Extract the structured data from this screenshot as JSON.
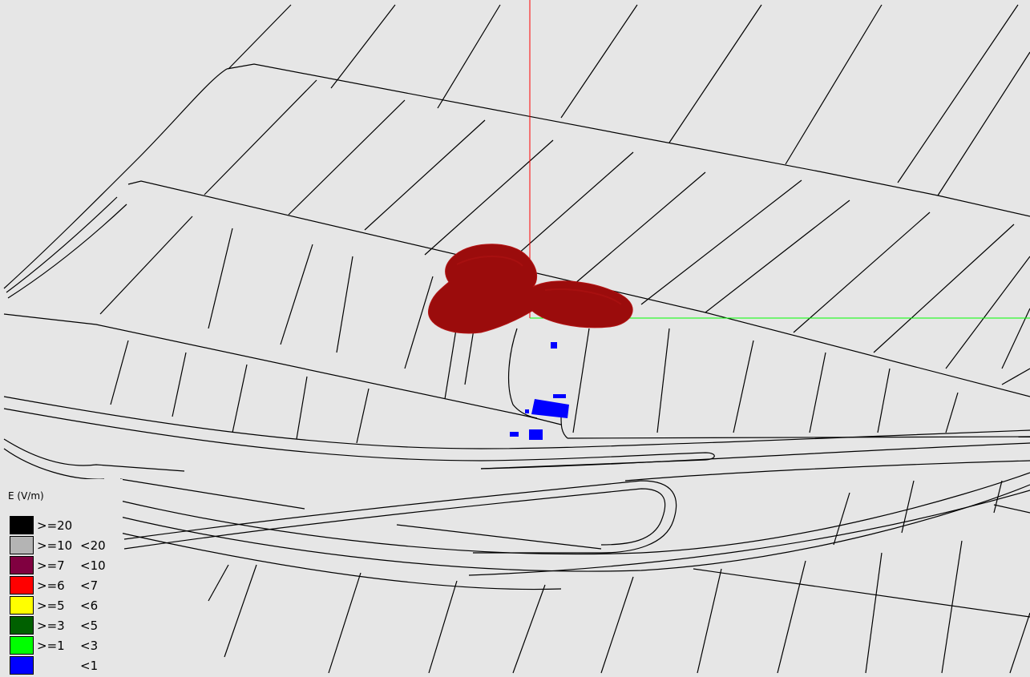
{
  "legend": {
    "title": "E (V/m)",
    "items": [
      {
        "lower": ">=20",
        "upper": "",
        "color": "#000000"
      },
      {
        "lower": ">=10",
        "upper": "<20",
        "color": "#b4b4b4"
      },
      {
        "lower": ">=7",
        "upper": "<10",
        "color": "#800040"
      },
      {
        "lower": ">=6",
        "upper": "<7",
        "color": "#ff0000"
      },
      {
        "lower": ">=5",
        "upper": "<6",
        "color": "#ffff00"
      },
      {
        "lower": ">=3",
        "upper": "<5",
        "color": "#006000"
      },
      {
        "lower": ">=1",
        "upper": "<3",
        "color": "#00ff00"
      },
      {
        "lower": "",
        "upper": "<1",
        "color": "#0000ff"
      }
    ]
  },
  "colors": {
    "background": "#e6e6e6",
    "map_lines": "#000000",
    "axis_vertical": "#ff0000",
    "axis_horizontal": "#00ff00",
    "field_region": "#9b0c0c",
    "field_region_highlight": "#b31414",
    "low_field_objects": "#0000ff"
  }
}
